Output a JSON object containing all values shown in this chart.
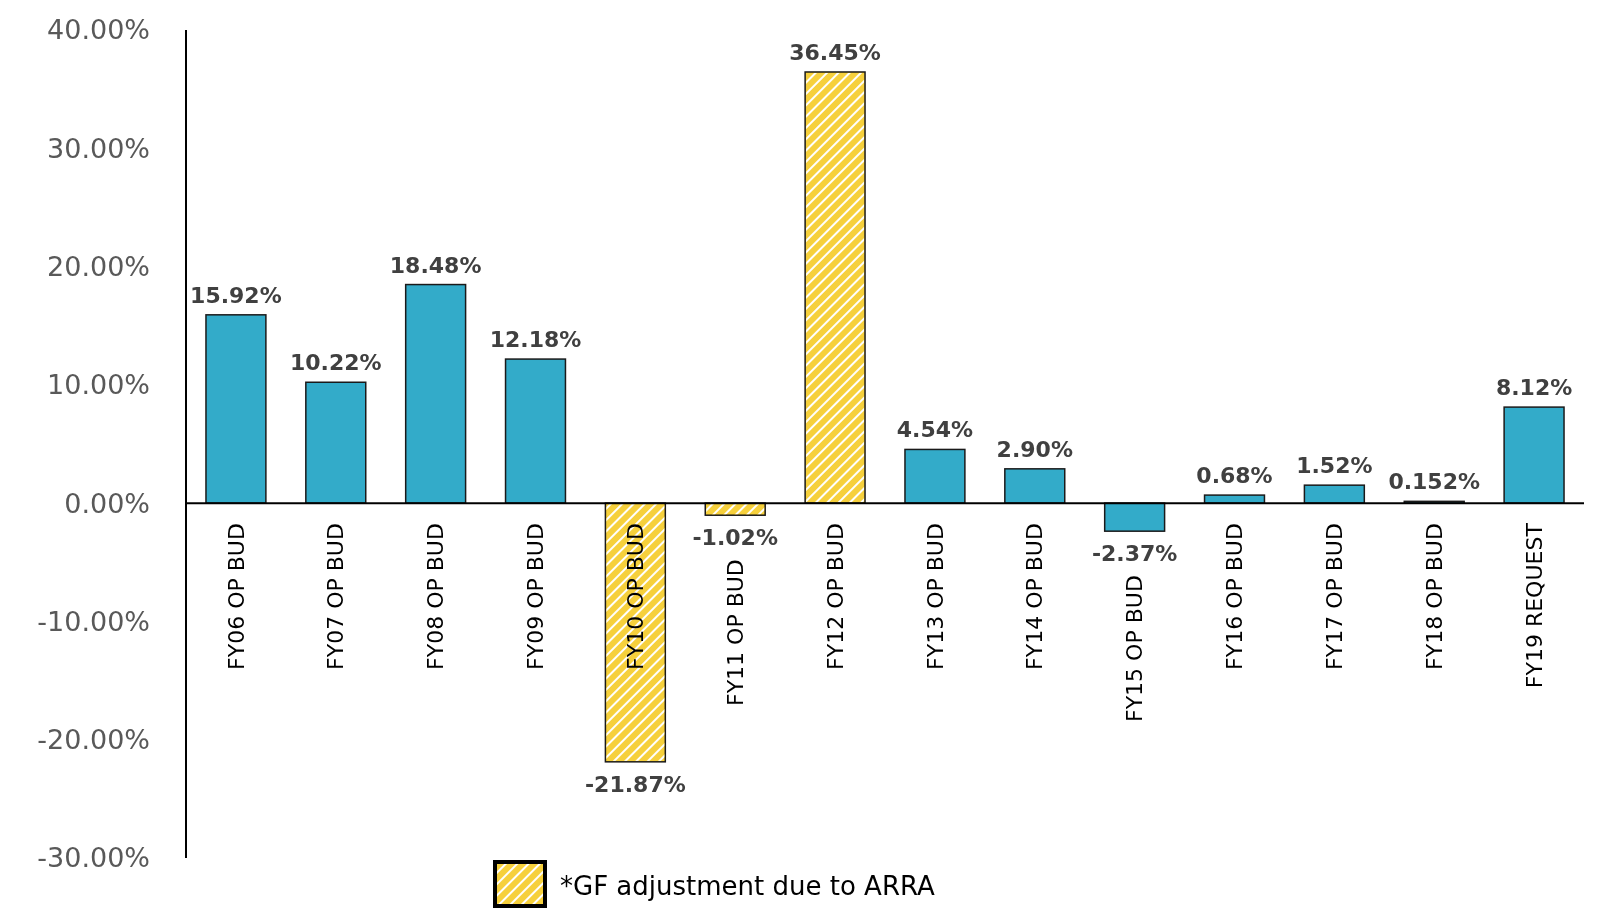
{
  "chart_data": {
    "type": "bar",
    "categories": [
      "FY06 OP BUD",
      "FY07 OP BUD",
      "FY08 OP BUD",
      "FY09 OP BUD",
      "FY10 OP BUD",
      "FY11 OP BUD",
      "FY12 OP BUD",
      "FY13 OP BUD",
      "FY14 OP BUD",
      "FY15 OP BUD",
      "FY16 OP BUD",
      "FY17 OP BUD",
      "FY18 OP BUD",
      "FY19 REQUEST"
    ],
    "series": [
      {
        "color": "#33abc9",
        "values": [
          15.92,
          10.22,
          18.48,
          12.18,
          null,
          null,
          null,
          4.54,
          2.9,
          -2.37,
          0.68,
          1.52,
          0.152,
          8.12
        ],
        "value_labels": [
          "15.92%",
          "10.22%",
          "18.48%",
          "12.18%",
          null,
          null,
          null,
          "4.54%",
          "2.90%",
          "-2.37%",
          "0.68%",
          "1.52%",
          "0.152%",
          "8.12%"
        ]
      },
      {
        "name": "*GF adjustment due to ARRA",
        "color": "#f6d03c",
        "values": [
          null,
          null,
          null,
          null,
          -21.87,
          -1.02,
          36.45,
          null,
          null,
          null,
          null,
          null,
          null,
          null
        ],
        "value_labels": [
          null,
          null,
          null,
          null,
          "-21.87%",
          "-1.02%",
          "36.45%",
          null,
          null,
          null,
          null,
          null,
          null,
          null
        ]
      }
    ],
    "ylim": [
      -30,
      40
    ],
    "yticks": [
      {
        "value": -30,
        "label": "-30.00%"
      },
      {
        "value": -20,
        "label": "-20.00%"
      },
      {
        "value": -10,
        "label": "-10.00%"
      },
      {
        "value": 0,
        "label": "0.00%"
      },
      {
        "value": 10,
        "label": "10.00%"
      },
      {
        "value": 20,
        "label": "20.00%"
      },
      {
        "value": 30,
        "label": "30.00%"
      },
      {
        "value": 40,
        "label": "40.00%"
      }
    ],
    "grid": false,
    "legend": "bottom"
  }
}
